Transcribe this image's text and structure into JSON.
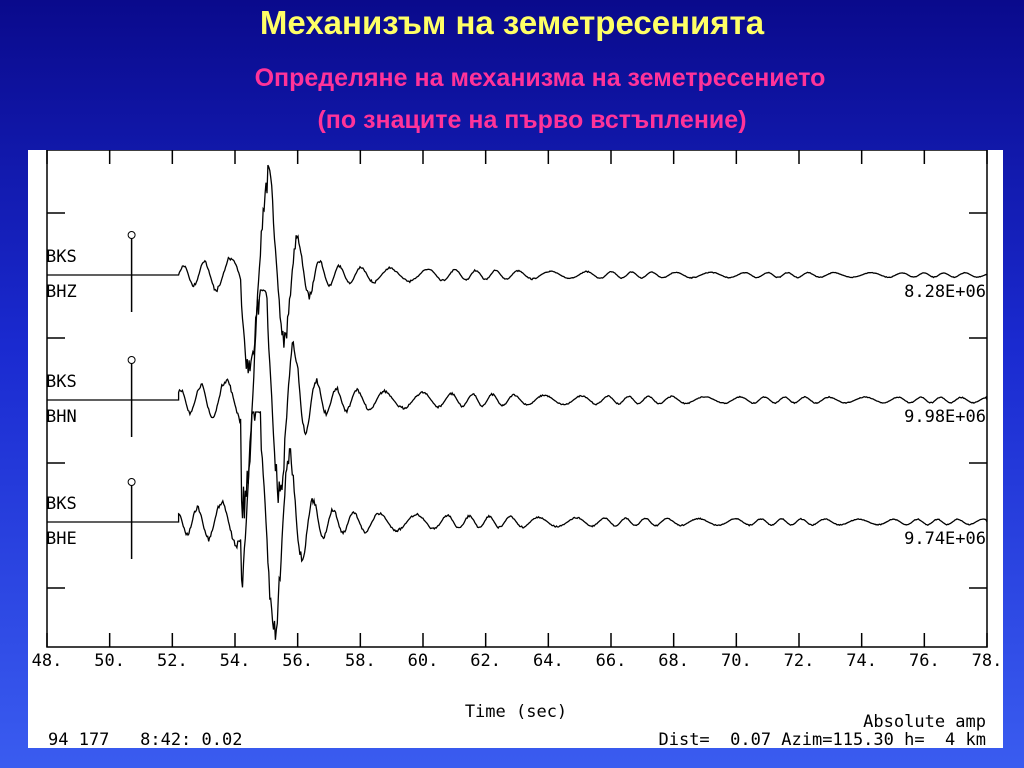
{
  "slide": {
    "title": "Механизъм на земетресенията",
    "subtitle": [
      "Определяне на механизма на земетресението",
      "(по знаците на първо встъпление)"
    ]
  },
  "chart_data": {
    "type": "seismogram",
    "x_label": "Time (sec)",
    "xlim": [
      48,
      78
    ],
    "xticks": [
      {
        "value": 48,
        "label": "48."
      },
      {
        "value": 50,
        "label": "50."
      },
      {
        "value": 52,
        "label": "52."
      },
      {
        "value": 54,
        "label": "54."
      },
      {
        "value": 56,
        "label": "56."
      },
      {
        "value": 58,
        "label": "58."
      },
      {
        "value": 60,
        "label": "60."
      },
      {
        "value": 62,
        "label": "62."
      },
      {
        "value": 64,
        "label": "64."
      },
      {
        "value": 66,
        "label": "66."
      },
      {
        "value": 68,
        "label": "68."
      },
      {
        "value": 70,
        "label": "70."
      },
      {
        "value": 72,
        "label": "72."
      },
      {
        "value": 74,
        "label": "74."
      },
      {
        "value": 76,
        "label": "76."
      },
      {
        "value": 78,
        "label": "78."
      }
    ],
    "traces": [
      {
        "station": "BKS",
        "channel": "BHZ",
        "amplitude_label": "8.28E+06",
        "pick": 50.7
      },
      {
        "station": "BKS",
        "channel": "BHN",
        "amplitude_label": "9.98E+06",
        "pick": 50.7
      },
      {
        "station": "BKS",
        "channel": "BHE",
        "amplitude_label": "9.74E+06",
        "pick": 50.7
      }
    ],
    "annotation": "Absolute amp",
    "footer_left": "94 177   8:42: 0.02",
    "footer_right": "Dist=  0.07 Azim=115.30 h=  4 km"
  }
}
